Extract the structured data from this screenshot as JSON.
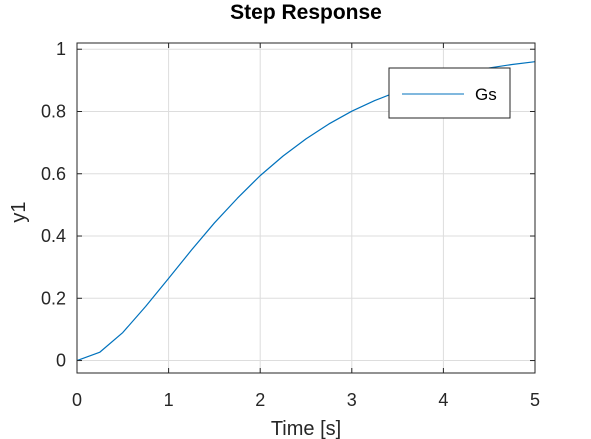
{
  "chart_data": {
    "type": "line",
    "title": "Step Response",
    "xlabel": "Time [s]",
    "ylabel": "y1",
    "xlim": [
      0,
      5
    ],
    "ylim": [
      -0.04,
      1.02
    ],
    "xticks": [
      0,
      1,
      2,
      3,
      4,
      5
    ],
    "xtick_labels": [
      "0",
      "1",
      "2",
      "3",
      "4",
      "5"
    ],
    "yticks": [
      0,
      0.2,
      0.4,
      0.6,
      0.8,
      1
    ],
    "ytick_labels": [
      "0",
      "0.2",
      "0.4",
      "0.6",
      "0.8",
      "1"
    ],
    "grid": true,
    "legend_position": "top-right",
    "series": [
      {
        "name": "Gs",
        "color": "#0072BD",
        "x": [
          0,
          0.25,
          0.5,
          0.75,
          1,
          1.25,
          1.5,
          1.75,
          2,
          2.25,
          2.5,
          2.75,
          3,
          3.25,
          3.5,
          3.75,
          4,
          4.25,
          4.5,
          4.75,
          5
        ],
        "y": [
          0,
          0.027,
          0.09,
          0.174,
          0.264,
          0.355,
          0.442,
          0.521,
          0.594,
          0.657,
          0.712,
          0.76,
          0.801,
          0.835,
          0.864,
          0.889,
          0.909,
          0.926,
          0.94,
          0.951,
          0.96
        ]
      }
    ]
  },
  "colors": {
    "grid": "#dddddd",
    "axis": "#262626",
    "line": "#0072BD"
  }
}
